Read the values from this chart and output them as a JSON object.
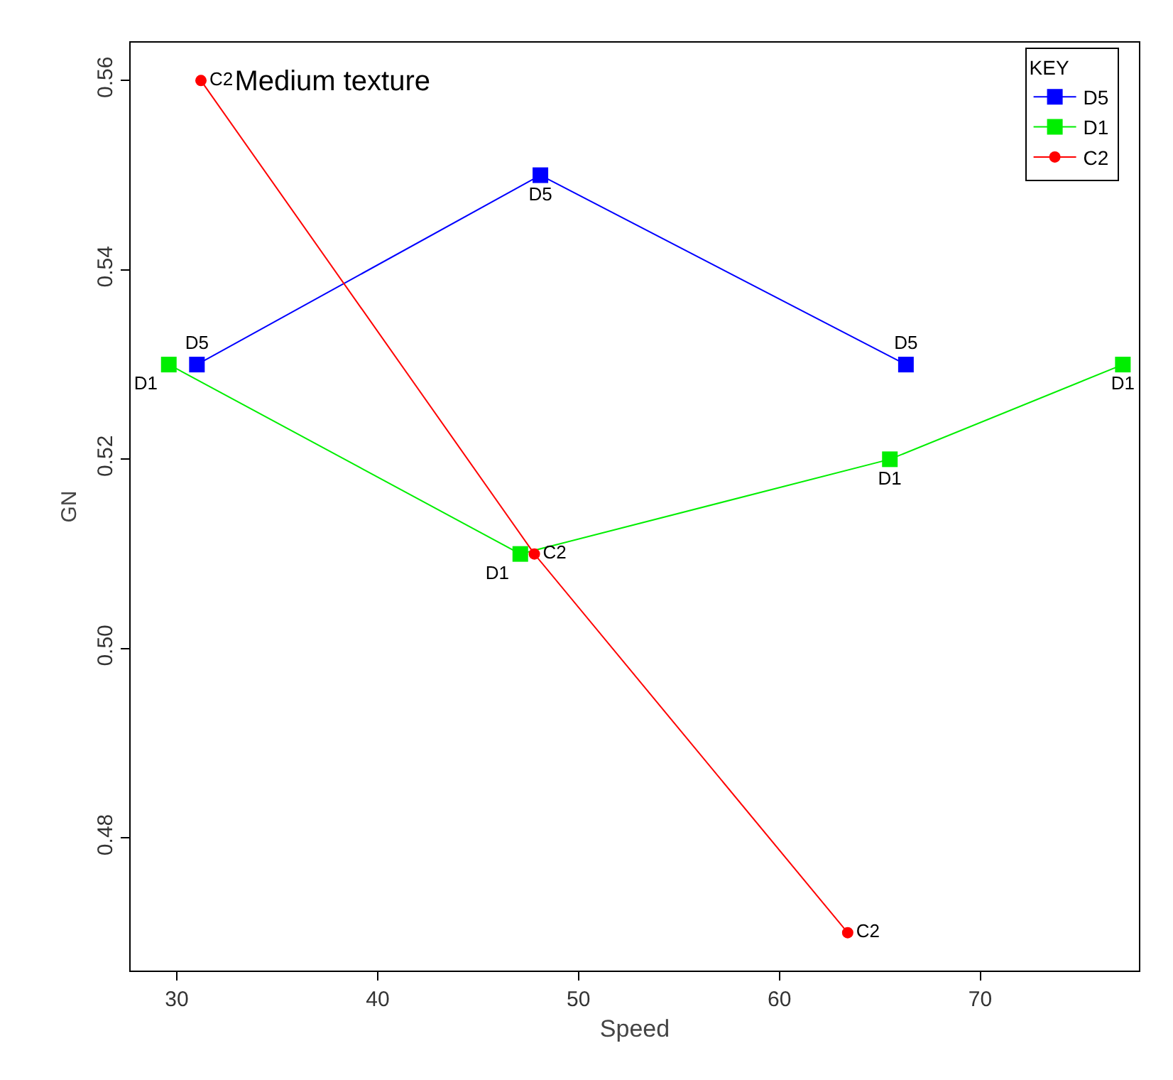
{
  "chart_data": {
    "type": "line",
    "title": "Medium texture",
    "xlabel": "Speed",
    "ylabel": "GN",
    "legend_title": "KEY",
    "xlim": [
      27.7,
      77.9
    ],
    "xticks": [
      30,
      40,
      50,
      60,
      70
    ],
    "ylim": [
      0.466,
      0.564
    ],
    "yticks": [
      {
        "value": 0.48,
        "label": "0.48"
      },
      {
        "value": 0.5,
        "label": "0.50"
      },
      {
        "value": 0.52,
        "label": "0.52"
      },
      {
        "value": 0.54,
        "label": "0.54"
      },
      {
        "value": 0.56,
        "label": "0.56"
      }
    ],
    "grid": false,
    "legend": "top right",
    "series": [
      {
        "name": "D5",
        "color": "#0000ff",
        "marker": "square",
        "x": [
          31.0,
          48.1,
          66.3
        ],
        "values": [
          0.53,
          0.55,
          0.53
        ]
      },
      {
        "name": "D1",
        "color": "#00ee00",
        "marker": "square",
        "x": [
          29.6,
          47.1,
          65.5,
          77.1
        ],
        "values": [
          0.53,
          0.51,
          0.52,
          0.53
        ]
      },
      {
        "name": "C2",
        "color": "#ff0000",
        "marker": "circle",
        "x": [
          31.2,
          47.8,
          63.4
        ],
        "values": [
          0.56,
          0.51,
          0.47
        ]
      }
    ]
  }
}
